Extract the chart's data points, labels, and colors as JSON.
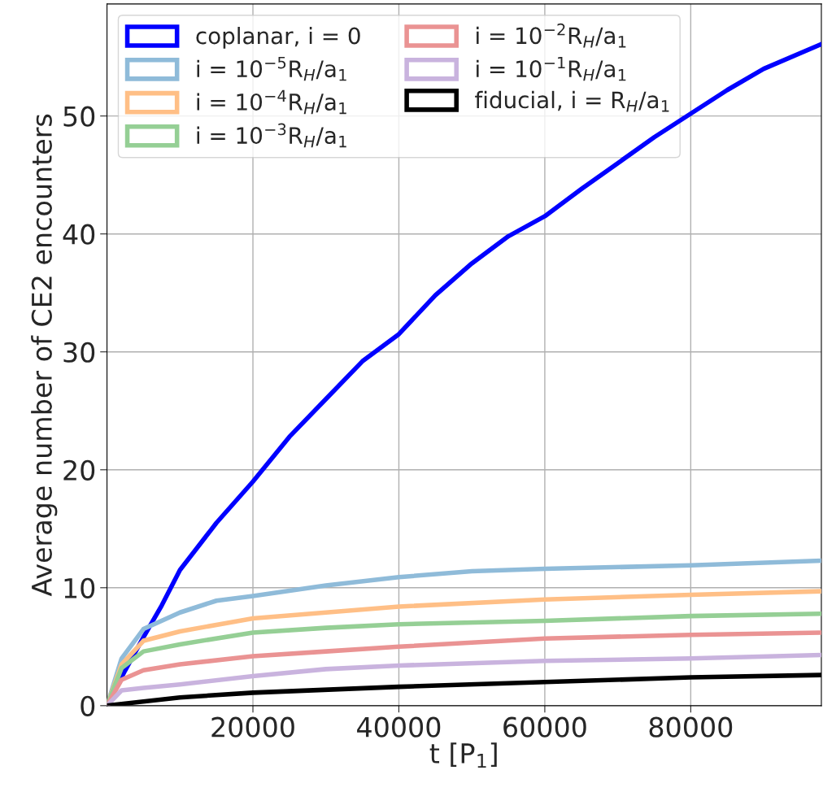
{
  "chart_data": {
    "type": "line",
    "xlabel": "t [P$_{1}$]",
    "ylabel": "Average number of CE2 encounters",
    "xlim": [
      0,
      97900
    ],
    "ylim": [
      0,
      59.5
    ],
    "xticks": [
      20000,
      40000,
      60000,
      80000
    ],
    "yticks": [
      0,
      10,
      20,
      30,
      40,
      50
    ],
    "grid": true,
    "legend": "top left",
    "marker": "none",
    "line_style": "solid",
    "series": [
      {
        "name": "coplanar, i = 0",
        "color": "#0000ff",
        "x": [
          0,
          2500,
          5000,
          7500,
          10000,
          15000,
          20000,
          25000,
          30000,
          35000,
          40000,
          45000,
          50000,
          55000,
          60000,
          65000,
          70000,
          75000,
          80000,
          85000,
          90000,
          97900
        ],
        "values": [
          0,
          3,
          5.8,
          8.5,
          11.5,
          15.5,
          19,
          22.8,
          26,
          29.2,
          31.5,
          34.8,
          37.5,
          39.8,
          41.5,
          43.8,
          46,
          48.2,
          50.2,
          52.2,
          54,
          56.1
        ]
      },
      {
        "name": "i = 10$^{−5}$R$_{H}$/a$_{1}$",
        "color": "#8fbbd9",
        "x": [
          0,
          2000,
          5000,
          10000,
          15000,
          20000,
          30000,
          40000,
          50000,
          60000,
          80000,
          97900
        ],
        "values": [
          0,
          4,
          6.5,
          7.9,
          8.9,
          9.3,
          10.2,
          10.9,
          11.4,
          11.6,
          11.9,
          12.3
        ]
      },
      {
        "name": "i = 10$^{−4}$R$_{H}$/a$_{1}$",
        "color": "#ffbf86",
        "x": [
          0,
          2000,
          5000,
          10000,
          20000,
          30000,
          40000,
          60000,
          80000,
          97900
        ],
        "values": [
          0,
          3.5,
          5.5,
          6.3,
          7.4,
          7.9,
          8.4,
          9.0,
          9.4,
          9.7
        ]
      },
      {
        "name": "i = 10$^{−3}$R$_{H}$/a$_{1}$",
        "color": "#95cf95",
        "x": [
          0,
          2000,
          5000,
          10000,
          20000,
          30000,
          40000,
          60000,
          80000,
          97900
        ],
        "values": [
          0,
          3.2,
          4.6,
          5.2,
          6.2,
          6.6,
          6.9,
          7.2,
          7.6,
          7.8
        ]
      },
      {
        "name": "i = 10$^{−2}$R$_{H}$/a$_{1}$",
        "color": "#ea9393",
        "x": [
          0,
          2000,
          5000,
          10000,
          20000,
          30000,
          40000,
          60000,
          80000,
          97900
        ],
        "values": [
          0,
          2.2,
          3.0,
          3.5,
          4.2,
          4.6,
          5.0,
          5.7,
          6.0,
          6.2
        ]
      },
      {
        "name": "i = 10$^{−1}$R$_{H}$/a$_{1}$",
        "color": "#c9b3de",
        "x": [
          0,
          2000,
          5000,
          10000,
          20000,
          30000,
          40000,
          60000,
          80000,
          97900
        ],
        "values": [
          0,
          1.3,
          1.5,
          1.8,
          2.5,
          3.1,
          3.4,
          3.8,
          4.0,
          4.3
        ]
      },
      {
        "name": "fiducial, i = R$_{H}$/a$_{1}$",
        "color": "#000000",
        "x": [
          0,
          2000,
          10000,
          20000,
          40000,
          60000,
          80000,
          97900
        ],
        "values": [
          0,
          0.15,
          0.7,
          1.1,
          1.6,
          2.0,
          2.4,
          2.6
        ]
      }
    ]
  }
}
